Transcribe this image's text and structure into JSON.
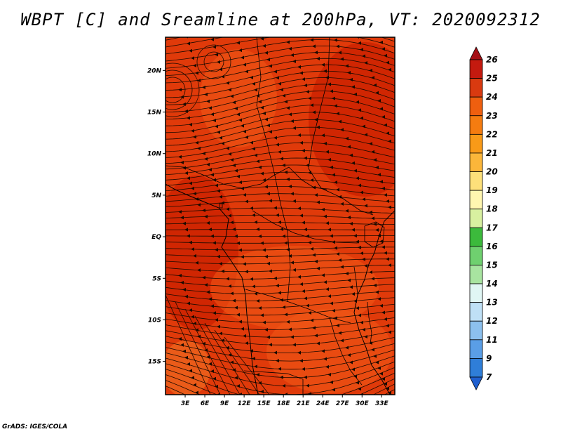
{
  "title": "WBPT [C] and Sreamline at 200hPa, VT: 2020092312",
  "credit": "GrADS: IGES/COLA",
  "map": {
    "lat_range": [
      -19,
      24
    ],
    "lon_range": [
      0,
      35
    ],
    "lat_ticks": [
      {
        "value": 20,
        "label": "20N"
      },
      {
        "value": 15,
        "label": "15N"
      },
      {
        "value": 10,
        "label": "10N"
      },
      {
        "value": 5,
        "label": "5N"
      },
      {
        "value": 0,
        "label": "EQ"
      },
      {
        "value": -5,
        "label": "5S"
      },
      {
        "value": -10,
        "label": "10S"
      },
      {
        "value": -15,
        "label": "15S"
      }
    ],
    "lon_ticks": [
      {
        "value": 3,
        "label": "3E"
      },
      {
        "value": 6,
        "label": "6E"
      },
      {
        "value": 9,
        "label": "9E"
      },
      {
        "value": 12,
        "label": "12E"
      },
      {
        "value": 15,
        "label": "15E"
      },
      {
        "value": 18,
        "label": "18E"
      },
      {
        "value": 21,
        "label": "21E"
      },
      {
        "value": 24,
        "label": "24E"
      },
      {
        "value": 27,
        "label": "27E"
      },
      {
        "value": 30,
        "label": "30E"
      },
      {
        "value": 33,
        "label": "33E"
      }
    ],
    "field_colors": {
      "base": "#e03a0a",
      "dark": "#cc2200",
      "light": "#f05a18",
      "warm": "#ee6a20"
    }
  },
  "colorbar": {
    "levels": [
      "26",
      "25",
      "24",
      "23",
      "22",
      "21",
      "20",
      "19",
      "18",
      "17",
      "16",
      "15",
      "14",
      "13",
      "12",
      "11",
      "9",
      "7"
    ],
    "colors": [
      "#a50f15",
      "#c41a0f",
      "#d93a10",
      "#ef5f0f",
      "#f57c10",
      "#f99a18",
      "#fbb63a",
      "#fde07a",
      "#fff6b0",
      "#d8f0a0",
      "#3cba3c",
      "#6fd06f",
      "#a8e4a0",
      "#e0f6f4",
      "#bfe0f6",
      "#8cc0ee",
      "#5a9ee6",
      "#2f7ed8",
      "#1f5fcf"
    ]
  }
}
